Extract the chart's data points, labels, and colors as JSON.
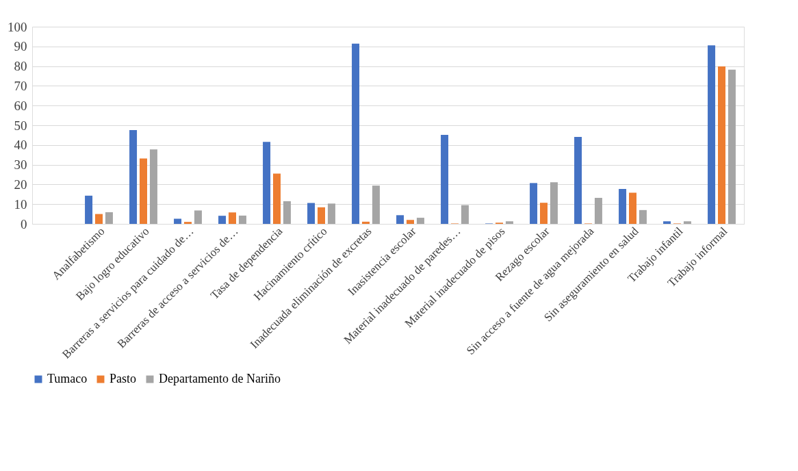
{
  "chart_data": {
    "type": "bar",
    "categories": [
      null,
      "Analfabetismo",
      "Bajo logro educativo",
      "Barreras a servicios para cuidado de…",
      "Barreras de acceso a servicios de…",
      "Tasa de dependencia",
      "Hacinamiento crítico",
      "Inadecuada eliminación de excretas",
      "Inasistencia escolar",
      "Material inadecuado de paredes…",
      "Material inadecuado de pisos",
      "Rezago escolar",
      "Sin acceso a fuente de agua mejorada",
      "Sin aseguramiento en salud",
      "Trabajo infantil",
      "Trabajo informal"
    ],
    "series": [
      {
        "name": "Tumaco",
        "color": "#4472c4",
        "values": [
          null,
          14.3,
          47.6,
          2.6,
          4.1,
          41.6,
          10.6,
          91.4,
          4.4,
          45.1,
          0.2,
          20.7,
          44.1,
          17.7,
          1.3,
          90.5
        ]
      },
      {
        "name": "Pasto",
        "color": "#ed7d31",
        "values": [
          null,
          5.0,
          33.2,
          1.0,
          5.8,
          25.5,
          8.4,
          1.1,
          2.0,
          0.2,
          0.6,
          10.7,
          0.2,
          15.8,
          0.2,
          79.9
        ]
      },
      {
        "name": "Departamento de Nariño",
        "color": "#a5a5a5",
        "values": [
          null,
          5.9,
          37.8,
          6.8,
          4.2,
          11.5,
          10.3,
          19.4,
          3.1,
          9.5,
          1.3,
          21.1,
          13.2,
          7.0,
          1.3,
          78.2
        ]
      }
    ],
    "ylim": [
      0,
      100
    ],
    "yticks": [
      0,
      10,
      20,
      30,
      40,
      50,
      60,
      70,
      80,
      90,
      100
    ],
    "grid": "y",
    "legend": "bottom"
  }
}
